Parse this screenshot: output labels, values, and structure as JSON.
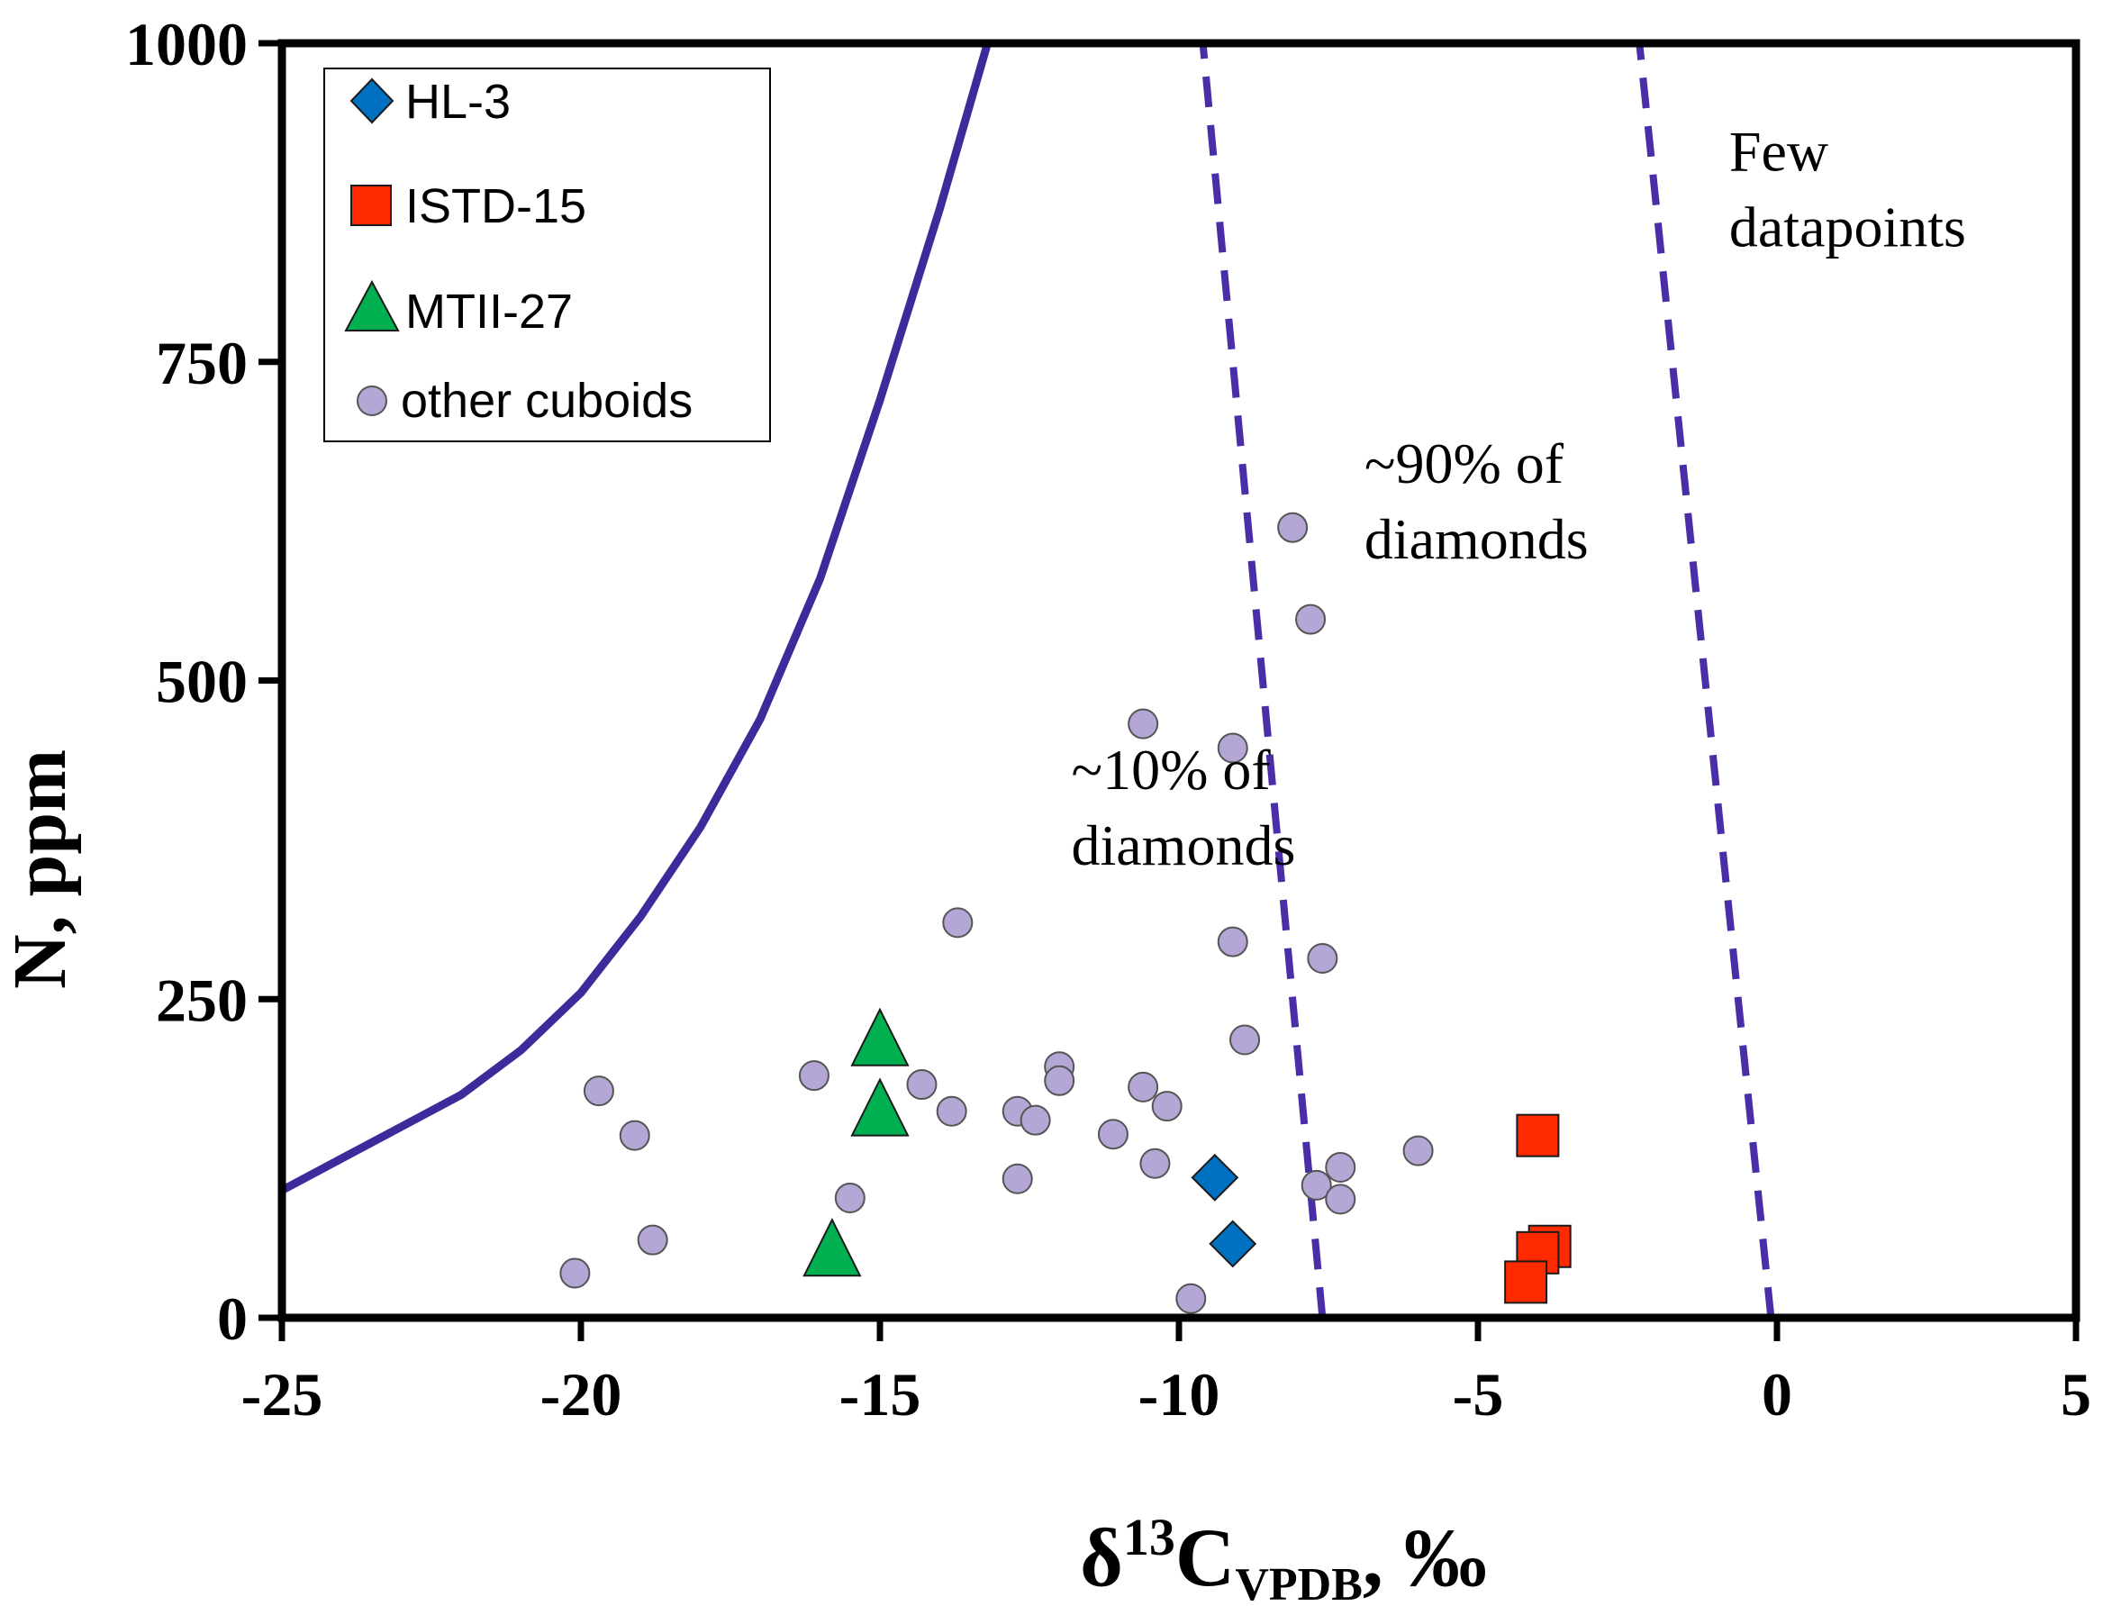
{
  "chart_data": {
    "type": "scatter",
    "title": "",
    "xlabel": {
      "main": "δ",
      "sup": "13",
      "sym": "C",
      "sub": "VPDB",
      "unit": ", ‰"
    },
    "ylabel": "N, ppm",
    "xlim": [
      -25,
      5
    ],
    "ylim": [
      0,
      1000
    ],
    "xticks": [
      -25,
      -20,
      -15,
      -10,
      -5,
      0,
      5
    ],
    "yticks": [
      0,
      250,
      500,
      750,
      1000
    ],
    "grid": false,
    "legend_position": "top-left",
    "series": [
      {
        "name": "HL-3",
        "marker": "diamond",
        "color": "#0070C0",
        "points": [
          [
            -9.4,
            110
          ],
          [
            -9.1,
            58
          ]
        ]
      },
      {
        "name": "ISTD-15",
        "marker": "square",
        "color": "#FF2A00",
        "points": [
          [
            -4.0,
            143
          ],
          [
            -3.8,
            56
          ],
          [
            -4.0,
            51
          ],
          [
            -4.2,
            28
          ]
        ]
      },
      {
        "name": "MTII-27",
        "marker": "triangle",
        "color": "#00B050",
        "points": [
          [
            -15.0,
            215
          ],
          [
            -15.0,
            160
          ],
          [
            -15.8,
            50
          ]
        ]
      },
      {
        "name": "other cuboids",
        "marker": "circle",
        "color": "#B4A7D6",
        "points": [
          [
            -20.1,
            35
          ],
          [
            -19.7,
            178
          ],
          [
            -19.1,
            143
          ],
          [
            -18.8,
            61
          ],
          [
            -16.1,
            190
          ],
          [
            -15.5,
            94
          ],
          [
            -14.3,
            183
          ],
          [
            -13.7,
            310
          ],
          [
            -13.8,
            162
          ],
          [
            -12.7,
            162
          ],
          [
            -12.7,
            109
          ],
          [
            -12.4,
            155
          ],
          [
            -12.0,
            197
          ],
          [
            -12.0,
            186
          ],
          [
            -11.1,
            144
          ],
          [
            -10.6,
            181
          ],
          [
            -10.6,
            466
          ],
          [
            -10.4,
            121
          ],
          [
            -10.2,
            166
          ],
          [
            -9.8,
            15
          ],
          [
            -9.1,
            447
          ],
          [
            -9.1,
            295
          ],
          [
            -8.9,
            218
          ],
          [
            -8.1,
            620
          ],
          [
            -7.8,
            548
          ],
          [
            -7.6,
            282
          ],
          [
            -7.7,
            104
          ],
          [
            -7.3,
            118
          ],
          [
            -7.3,
            93
          ],
          [
            -6.0,
            131
          ]
        ]
      }
    ],
    "boundary_lines": [
      {
        "name": "solid-curve",
        "style": "solid",
        "color": "#3F2A9C",
        "points": [
          [
            -25,
            100
          ],
          [
            -24,
            125
          ],
          [
            -23,
            150
          ],
          [
            -22,
            175
          ],
          [
            -21,
            210
          ],
          [
            -20,
            255
          ],
          [
            -19,
            315
          ],
          [
            -18,
            385
          ],
          [
            -17,
            470
          ],
          [
            -16,
            580
          ],
          [
            -15,
            720
          ],
          [
            -14,
            870
          ],
          [
            -13.2,
            1000
          ]
        ]
      },
      {
        "name": "dashed-line-left",
        "style": "dashed",
        "color": "#4A2EA8",
        "points": [
          [
            -7.6,
            0
          ],
          [
            -9.6,
            1000
          ]
        ]
      },
      {
        "name": "dashed-line-right",
        "style": "dashed",
        "color": "#4A2EA8",
        "points": [
          [
            -0.1,
            0
          ],
          [
            -2.3,
            1000
          ]
        ]
      }
    ],
    "annotations": [
      {
        "lines": [
          "~10% of",
          "diamonds"
        ],
        "x": -11.8,
        "y": 415
      },
      {
        "lines": [
          "~90% of",
          "diamonds"
        ],
        "x": -6.9,
        "y": 655
      },
      {
        "lines": [
          "Few",
          "datapoints"
        ],
        "x": -0.8,
        "y": 900
      }
    ]
  }
}
